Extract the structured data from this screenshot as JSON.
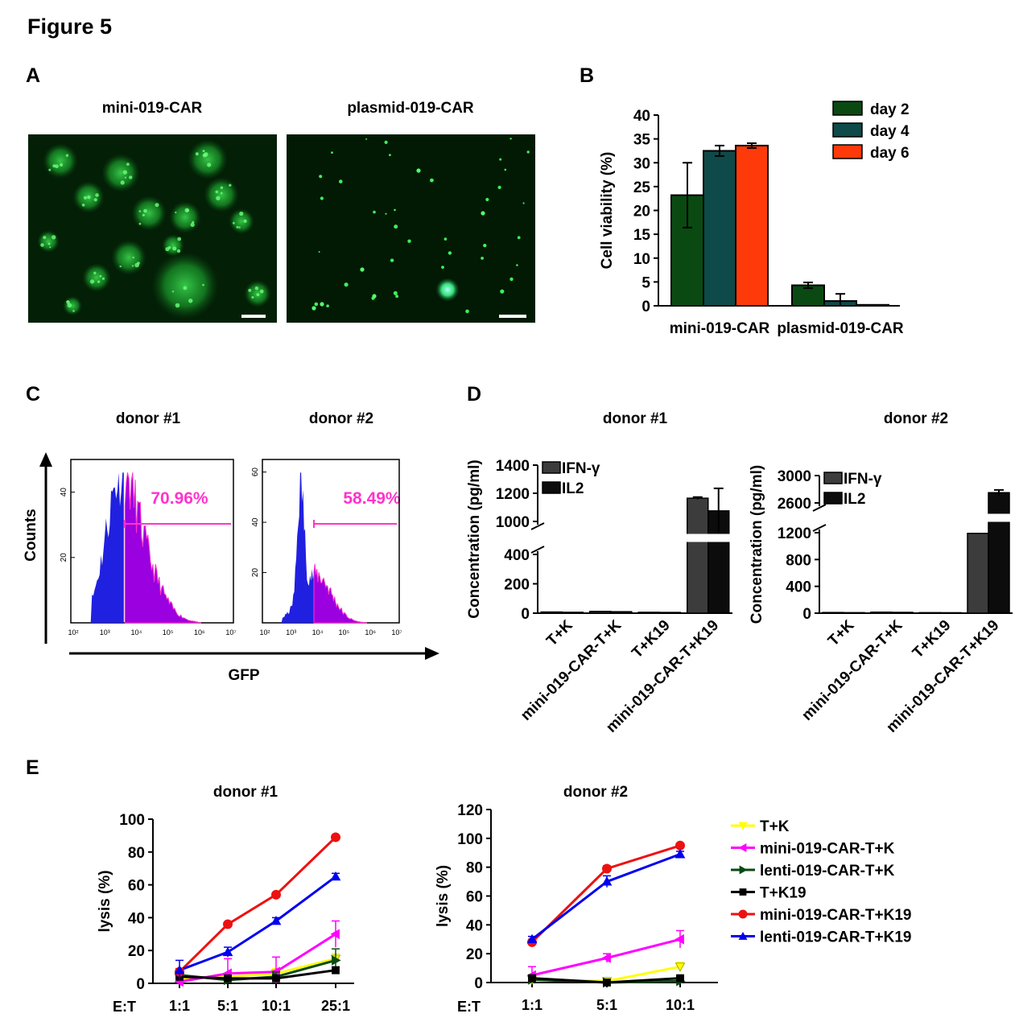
{
  "figure_title": "Figure 5",
  "panels": {
    "A": {
      "letter": "A",
      "images": [
        {
          "label": "mini-019-CAR",
          "kind": "fluorescence micrograph, large green cell clusters",
          "color": "#0f7a1e"
        },
        {
          "label": "plasmid-019-CAR",
          "kind": "fluorescence micrograph, sparse green dots",
          "color": "#2bd64a"
        }
      ]
    },
    "B": {
      "letter": "B"
    },
    "C": {
      "letter": "C",
      "ylabel": "Counts",
      "xlabel": "GFP",
      "histograms": [
        {
          "title": "donor #1",
          "gate_label": "70.96%",
          "gate_percent": 70.96,
          "yticks": [
            "40",
            "20"
          ],
          "ymax": 50
        },
        {
          "title": "donor #2",
          "gate_label": "58.49%",
          "gate_percent": 58.49,
          "yticks": [
            "60",
            "40",
            "20"
          ],
          "ymax": 65
        }
      ],
      "xticks": [
        "10²",
        "10³",
        "10⁴",
        "10⁵",
        "10⁶",
        "10⁷"
      ],
      "colors": {
        "negative": "#2020e0",
        "positive": "#9a00e0",
        "gate": "#ff33cc"
      }
    },
    "D": {
      "letter": "D"
    },
    "E": {
      "letter": "E",
      "et_label": "E:T"
    }
  },
  "chart_data": [
    {
      "id": "B",
      "type": "bar",
      "categories": [
        "mini-019-CAR",
        "plasmid-019-CAR"
      ],
      "ylabel": "Cell viability (%)",
      "ylim": [
        0,
        40
      ],
      "yticks": [
        0,
        5,
        10,
        15,
        20,
        25,
        30,
        35,
        40
      ],
      "legend_position": "top-right",
      "series": [
        {
          "name": "day 2",
          "color": "#0a4a12",
          "values": [
            23.2,
            4.3
          ],
          "errors": [
            6.8,
            0.6
          ]
        },
        {
          "name": "day 4",
          "color": "#0e4a4a",
          "values": [
            32.5,
            1.0
          ],
          "errors": [
            1.1,
            1.5
          ]
        },
        {
          "name": "day 6",
          "color": "#ff3a0a",
          "values": [
            33.6,
            0.2
          ],
          "errors": [
            0.5,
            0.0
          ]
        }
      ]
    },
    {
      "id": "D1",
      "type": "bar",
      "title": "donor #1",
      "categories": [
        "T+K",
        "mini-019-CAR-T+K",
        "T+K19",
        "mini-019-CAR-T+K19"
      ],
      "ylabel": "Concentration (pg/ml)",
      "axis_break": {
        "lower": [
          0,
          400
        ],
        "upper": [
          1000,
          1400
        ]
      },
      "yticks_lower": [
        0,
        200,
        400
      ],
      "yticks_upper": [
        1000,
        1200,
        1400
      ],
      "legend_position": "top-left",
      "series": [
        {
          "name": "IFN-γ",
          "color": "#3c3c3c",
          "values": [
            8,
            12,
            6,
            1165
          ],
          "errors": [
            0,
            0,
            0,
            8
          ]
        },
        {
          "name": "IL2",
          "color": "#0c0c0c",
          "values": [
            6,
            10,
            5,
            1075
          ],
          "errors": [
            0,
            0,
            0,
            160
          ]
        }
      ]
    },
    {
      "id": "D2",
      "type": "bar",
      "title": "donor #2",
      "categories": [
        "T+K",
        "mini-019-CAR-T+K",
        "T+K19",
        "mini-019-CAR-T+K19"
      ],
      "ylabel": "Concentration (pg/ml)",
      "axis_break": {
        "lower": [
          0,
          1200
        ],
        "upper": [
          2600,
          3000
        ]
      },
      "yticks_lower": [
        0,
        400,
        800,
        1200
      ],
      "yticks_upper": [
        2600,
        3000
      ],
      "legend_position": "top-left",
      "series": [
        {
          "name": "IFN-γ",
          "color": "#3c3c3c",
          "values": [
            10,
            15,
            8,
            1190
          ],
          "errors": [
            0,
            0,
            0,
            0
          ]
        },
        {
          "name": "IL2",
          "color": "#0c0c0c",
          "values": [
            8,
            12,
            7,
            2750
          ],
          "errors": [
            0,
            0,
            0,
            40
          ]
        }
      ]
    },
    {
      "id": "E1",
      "type": "line",
      "title": "donor #1",
      "x": [
        "1:1",
        "5:1",
        "10:1",
        "25:1"
      ],
      "ylabel": "lysis (%)",
      "ylim": [
        0,
        100
      ],
      "yticks": [
        0,
        20,
        40,
        60,
        80,
        100
      ],
      "series": [
        {
          "name": "T+K",
          "color": "#ffff00",
          "marker": "tri-down",
          "values": [
            3,
            4,
            6,
            15
          ],
          "errors": [
            2,
            2,
            3,
            3
          ]
        },
        {
          "name": "mini-019-CAR-T+K",
          "color": "#ff00ff",
          "marker": "tri-left",
          "values": [
            1,
            6,
            7,
            30
          ],
          "errors": [
            2,
            9,
            9,
            8
          ]
        },
        {
          "name": "lenti-019-CAR-T+K",
          "color": "#0a4a12",
          "marker": "tri-right",
          "values": [
            5,
            2,
            4,
            14
          ],
          "errors": [
            2,
            2,
            3,
            7
          ]
        },
        {
          "name": "T+K19",
          "color": "#000000",
          "marker": "square",
          "values": [
            4,
            3,
            3,
            8
          ],
          "errors": [
            1,
            1,
            1,
            2
          ]
        },
        {
          "name": "mini-019-CAR-T+K19",
          "color": "#ee1111",
          "marker": "circle",
          "values": [
            7,
            36,
            54,
            89
          ],
          "errors": [
            2,
            1,
            1,
            1
          ]
        },
        {
          "name": "lenti-019-CAR-T+K19",
          "color": "#0000ee",
          "marker": "tri-up",
          "values": [
            8,
            19,
            38,
            65
          ],
          "errors": [
            6,
            3,
            2,
            2
          ]
        }
      ]
    },
    {
      "id": "E2",
      "type": "line",
      "title": "donor #2",
      "x": [
        "1:1",
        "5:1",
        "10:1"
      ],
      "ylabel": "lysis (%)",
      "ylim": [
        0,
        120
      ],
      "yticks": [
        0,
        20,
        40,
        60,
        80,
        100,
        120
      ],
      "series": [
        {
          "name": "T+K",
          "color": "#ffff00",
          "marker": "tri-down",
          "values": [
            2,
            1,
            11
          ],
          "errors": [
            1,
            1,
            3
          ]
        },
        {
          "name": "mini-019-CAR-T+K",
          "color": "#ff00ff",
          "marker": "tri-left",
          "values": [
            5,
            17,
            30
          ],
          "errors": [
            6,
            3,
            6
          ]
        },
        {
          "name": "lenti-019-CAR-T+K",
          "color": "#0a4a12",
          "marker": "tri-right",
          "values": [
            2,
            0,
            1
          ],
          "errors": [
            1,
            0,
            1
          ]
        },
        {
          "name": "T+K19",
          "color": "#000000",
          "marker": "square",
          "values": [
            3,
            0,
            3
          ],
          "errors": [
            1,
            0,
            1
          ]
        },
        {
          "name": "mini-019-CAR-T+K19",
          "color": "#ee1111",
          "marker": "circle",
          "values": [
            28,
            79,
            95
          ],
          "errors": [
            2,
            2,
            1
          ]
        },
        {
          "name": "lenti-019-CAR-T+K19",
          "color": "#0000ee",
          "marker": "tri-up",
          "values": [
            30,
            70,
            89
          ],
          "errors": [
            2,
            4,
            2
          ]
        }
      ]
    }
  ]
}
